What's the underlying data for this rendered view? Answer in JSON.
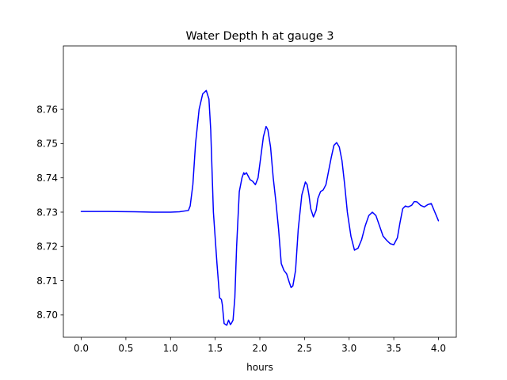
{
  "chart_data": {
    "type": "line",
    "title": "Water Depth h at gauge 3",
    "xlabel": "hours",
    "ylabel": "",
    "xlim": [
      -0.2,
      4.2
    ],
    "ylim": [
      8.6935,
      8.7785
    ],
    "grid": false,
    "x_ticks": [
      0.0,
      0.5,
      1.0,
      1.5,
      2.0,
      2.5,
      3.0,
      3.5,
      4.0
    ],
    "x_tick_labels": [
      "0.0",
      "0.5",
      "1.0",
      "1.5",
      "2.0",
      "2.5",
      "3.0",
      "3.5",
      "4.0"
    ],
    "y_ticks": [
      8.7,
      8.71,
      8.72,
      8.73,
      8.74,
      8.75,
      8.76
    ],
    "y_tick_labels": [
      "8.70",
      "8.71",
      "8.72",
      "8.73",
      "8.74",
      "8.75",
      "8.76"
    ],
    "colors": {
      "line": "#0000ff"
    },
    "series": [
      {
        "x": [
          0.0,
          0.3,
          0.6,
          0.8,
          1.0,
          1.1,
          1.2,
          1.22,
          1.25,
          1.28,
          1.32,
          1.36,
          1.4,
          1.43,
          1.45,
          1.48,
          1.52,
          1.55,
          1.57,
          1.58,
          1.6,
          1.63,
          1.65,
          1.67,
          1.68,
          1.7,
          1.72,
          1.74,
          1.77,
          1.8,
          1.82,
          1.83,
          1.85,
          1.87,
          1.89,
          1.92,
          1.95,
          1.98,
          2.01,
          2.04,
          2.07,
          2.09,
          2.12,
          2.15,
          2.18,
          2.21,
          2.24,
          2.27,
          2.3,
          2.33,
          2.35,
          2.37,
          2.4,
          2.43,
          2.47,
          2.51,
          2.53,
          2.55,
          2.57,
          2.6,
          2.63,
          2.65,
          2.68,
          2.71,
          2.74,
          2.77,
          2.8,
          2.83,
          2.86,
          2.89,
          2.92,
          2.95,
          2.98,
          3.02,
          3.06,
          3.1,
          3.14,
          3.18,
          3.22,
          3.26,
          3.3,
          3.34,
          3.38,
          3.42,
          3.46,
          3.5,
          3.54,
          3.57,
          3.6,
          3.63,
          3.66,
          3.7,
          3.73,
          3.76,
          3.8,
          3.84,
          3.88,
          3.92,
          3.96,
          4.0
        ],
        "y": [
          8.7302,
          8.7302,
          8.7301,
          8.73,
          8.73,
          8.7301,
          8.7305,
          8.7318,
          8.738,
          8.75,
          8.76,
          8.7645,
          8.7655,
          8.763,
          8.754,
          8.73,
          8.715,
          8.705,
          8.7045,
          8.703,
          8.6975,
          8.697,
          8.6985,
          8.6972,
          8.6975,
          8.6985,
          8.705,
          8.72,
          8.736,
          8.74,
          8.7415,
          8.741,
          8.7415,
          8.7405,
          8.7395,
          8.739,
          8.738,
          8.74,
          8.746,
          8.752,
          8.755,
          8.754,
          8.749,
          8.74,
          8.733,
          8.725,
          8.715,
          8.713,
          8.712,
          8.7095,
          8.708,
          8.7085,
          8.713,
          8.725,
          8.735,
          8.7388,
          8.738,
          8.735,
          8.731,
          8.7286,
          8.7305,
          8.734,
          8.736,
          8.7365,
          8.738,
          8.742,
          8.746,
          8.7495,
          8.7503,
          8.749,
          8.745,
          8.738,
          8.73,
          8.723,
          8.7189,
          8.7195,
          8.722,
          8.726,
          8.729,
          8.73,
          8.729,
          8.726,
          8.723,
          8.7218,
          8.7208,
          8.7205,
          8.7225,
          8.727,
          8.731,
          8.7318,
          8.7315,
          8.732,
          8.7331,
          8.733,
          8.732,
          8.7315,
          8.7322,
          8.7325,
          8.73,
          8.7275
        ]
      }
    ]
  }
}
